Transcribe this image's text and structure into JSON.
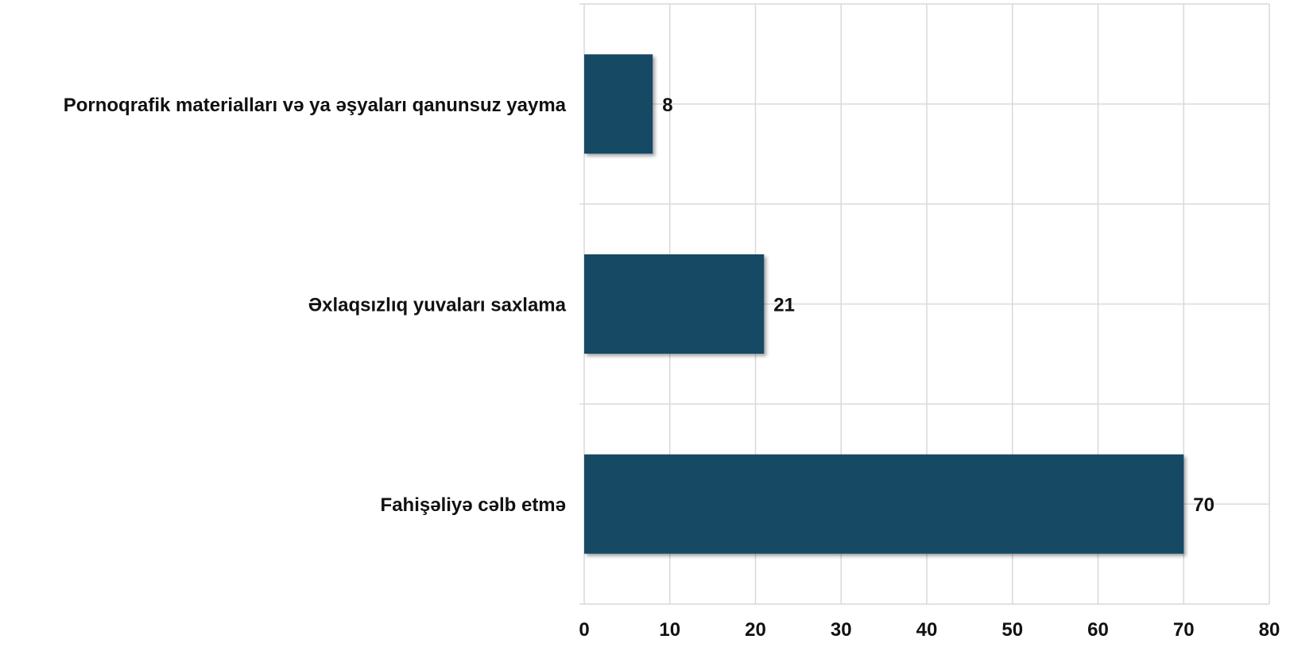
{
  "chart_data": {
    "type": "bar",
    "orientation": "horizontal",
    "categories": [
      "Pornoqrafik materialları və ya əşyaları qanunsuz yayma",
      "Əxlaqsızlıq yuvaları saxlama",
      "Fahişəliyə cəlb etmə"
    ],
    "values": [
      8,
      21,
      70
    ],
    "data_labels": [
      "8",
      "21",
      "70"
    ],
    "xlim": [
      0,
      80
    ],
    "x_ticks": [
      0,
      10,
      20,
      30,
      40,
      50,
      60,
      70,
      80
    ],
    "x_tick_labels": [
      "0",
      "10",
      "20",
      "30",
      "40",
      "50",
      "60",
      "70",
      "80"
    ],
    "grid": true,
    "legend": "none",
    "title": "",
    "xlabel": "",
    "ylabel": ""
  },
  "colors": {
    "bar": "#134A63",
    "grid": "#D9D9D9",
    "text": "#111111"
  }
}
